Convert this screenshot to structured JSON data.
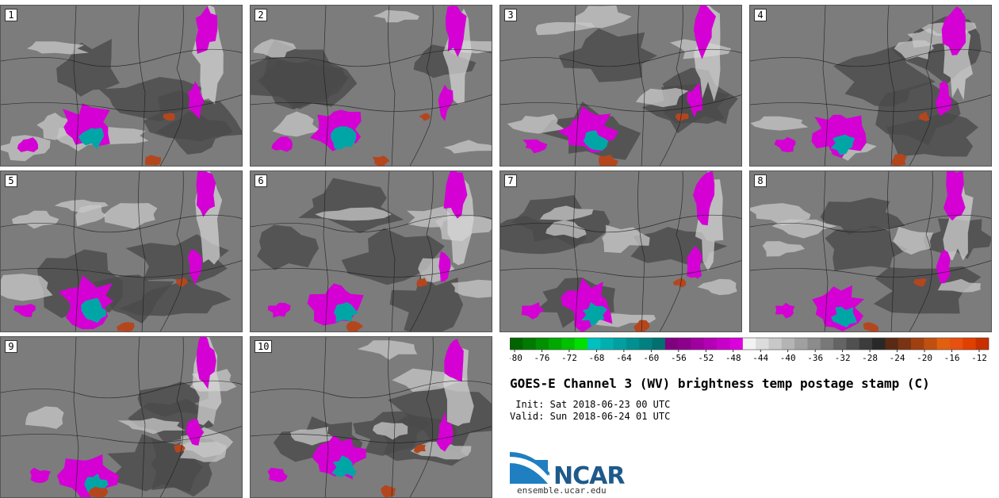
{
  "title": "GOES-E Channel 3 (WV) brightness temp postage stamp (C)",
  "init_label": "Init:",
  "init_value": "Sat 2018-06-23 00 UTC",
  "valid_label": "Valid:",
  "valid_value": "Sun 2018-06-24 01 UTC",
  "logo_text": "NCAR",
  "site_url": "ensemble.ucar.edu",
  "panels": [
    {
      "number": "1"
    },
    {
      "number": "2"
    },
    {
      "number": "3"
    },
    {
      "number": "4"
    },
    {
      "number": "5"
    },
    {
      "number": "6"
    },
    {
      "number": "7"
    },
    {
      "number": "8"
    },
    {
      "number": "9"
    },
    {
      "number": "10"
    }
  ],
  "colorbar": {
    "ticks": [
      "-80",
      "-76",
      "-72",
      "-68",
      "-64",
      "-60",
      "-56",
      "-52",
      "-48",
      "-44",
      "-40",
      "-36",
      "-32",
      "-28",
      "-24",
      "-20",
      "-16",
      "-12"
    ],
    "colors": [
      "#006400",
      "#007a00",
      "#009000",
      "#00a800",
      "#00c000",
      "#00e000",
      "#00c0c0",
      "#00b0b0",
      "#00a0a0",
      "#009090",
      "#008080",
      "#007070",
      "#800080",
      "#8c008c",
      "#a000a0",
      "#b400b4",
      "#c800c8",
      "#dc00dc",
      "#f2f2f2",
      "#dcdcdc",
      "#c8c8c8",
      "#b4b4b4",
      "#a0a0a0",
      "#8c8c8c",
      "#787878",
      "#646464",
      "#505050",
      "#3c3c3c",
      "#282828",
      "#5a2a14",
      "#7a3414",
      "#a04010",
      "#c05010",
      "#e06010",
      "#e85010",
      "#e04000",
      "#c83000"
    ]
  },
  "colors": {
    "cold_cloud": "#d400d4",
    "deep_cloud": "#00a6a6",
    "warm_dry": "#b4461e",
    "land_gray": "#7c7c7c"
  }
}
